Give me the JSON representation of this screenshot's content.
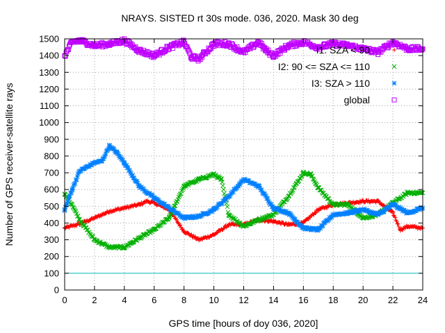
{
  "chart_data": {
    "type": "scatter",
    "title": "NRAYS. SISTED rt 30s mode. 036, 2020. Mask 30 deg",
    "xlabel": "GPS time [hours of doy 036, 2020]",
    "ylabel": "Number of GPS receiver-satellite rays",
    "xlim": [
      0,
      24
    ],
    "ylim": [
      0,
      1500
    ],
    "xticks": [
      "0",
      "2",
      "4",
      "6",
      "8",
      "10",
      "12",
      "14",
      "16",
      "18",
      "20",
      "22",
      "24"
    ],
    "yticks": [
      "0",
      "100",
      "200",
      "300",
      "400",
      "500",
      "600",
      "700",
      "800",
      "900",
      "1000",
      "1100",
      "1200",
      "1300",
      "1400",
      "1500"
    ],
    "grid": true,
    "legend_position": "top-right",
    "threshold": {
      "value": 100,
      "color": "#00c0c0"
    },
    "series": [
      {
        "name": "I1: SZA < 90",
        "color": "#ff0000",
        "marker": "plus",
        "x": [
          0,
          1,
          2,
          3,
          4,
          5,
          5.5,
          6,
          7,
          8,
          9,
          10,
          11,
          12,
          13,
          14,
          15,
          16,
          17,
          18,
          19,
          20,
          21,
          22,
          22.5,
          23,
          24
        ],
        "y": [
          370,
          395,
          430,
          470,
          490,
          510,
          530,
          520,
          480,
          350,
          300,
          330,
          390,
          390,
          420,
          410,
          390,
          400,
          480,
          510,
          520,
          530,
          530,
          460,
          360,
          380,
          370
        ]
      },
      {
        "name": "I2: 90 <= SZA <= 110",
        "color": "#00b000",
        "marker": "cross",
        "x": [
          0,
          0.5,
          1,
          2,
          3,
          4,
          5,
          6,
          7,
          8,
          9,
          10,
          10.5,
          11,
          12,
          13,
          14,
          15,
          16,
          16.5,
          17,
          18,
          19,
          20,
          21,
          22,
          23,
          24
        ],
        "y": [
          570,
          510,
          420,
          300,
          255,
          255,
          310,
          360,
          430,
          620,
          660,
          690,
          660,
          450,
          380,
          420,
          450,
          560,
          700,
          690,
          610,
          510,
          510,
          430,
          450,
          520,
          580,
          580
        ]
      },
      {
        "name": "I3: SZA > 110",
        "color": "#0080ff",
        "marker": "star",
        "x": [
          0,
          0.5,
          1,
          2,
          2.5,
          3,
          3.5,
          4,
          5,
          6,
          7,
          8,
          9,
          10,
          11,
          12,
          13,
          14,
          15,
          16,
          17,
          18,
          19,
          20,
          21,
          22,
          23,
          24
        ],
        "y": [
          480,
          600,
          710,
          760,
          770,
          860,
          820,
          760,
          620,
          550,
          490,
          430,
          440,
          480,
          560,
          660,
          620,
          490,
          460,
          370,
          360,
          450,
          460,
          480,
          450,
          510,
          460,
          490
        ]
      },
      {
        "name": "global",
        "color": "#bf00ff",
        "marker": "square",
        "x": [
          0,
          0.5,
          1,
          2,
          3,
          4,
          5,
          6,
          7,
          8,
          8.5,
          9,
          10,
          11,
          12,
          13,
          13.5,
          14,
          15,
          16,
          17,
          18,
          19,
          20,
          21,
          22,
          23,
          24
        ],
        "y": [
          1400,
          1480,
          1490,
          1460,
          1470,
          1490,
          1430,
          1400,
          1450,
          1480,
          1390,
          1380,
          1470,
          1470,
          1420,
          1480,
          1430,
          1400,
          1460,
          1480,
          1450,
          1470,
          1460,
          1440,
          1420,
          1480,
          1440,
          1440
        ]
      }
    ]
  }
}
